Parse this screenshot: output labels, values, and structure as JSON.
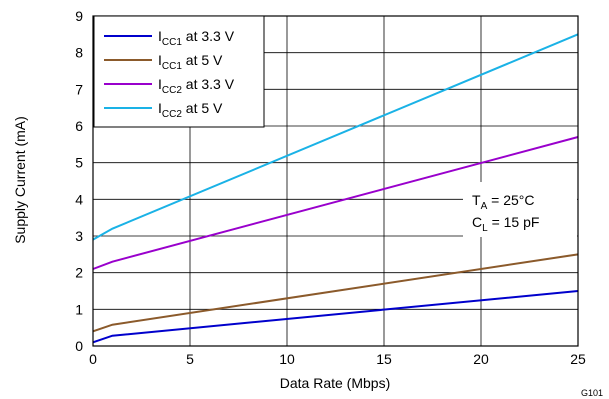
{
  "chart_data": {
    "type": "line",
    "xlabel": "Data Rate (Mbps)",
    "ylabel": "Supply Current (mA)",
    "xlim": [
      0,
      25
    ],
    "ylim": [
      0,
      9
    ],
    "x_ticks": [
      0,
      5,
      10,
      15,
      20,
      25
    ],
    "y_ticks": [
      0,
      1,
      2,
      3,
      4,
      5,
      6,
      7,
      8,
      9
    ],
    "grid": true,
    "legend_position": "top-left",
    "series": [
      {
        "name_main": "I",
        "name_sub": "CC1",
        "name_rest": " at 3.3 V",
        "color": "#0000cc",
        "x": [
          0,
          1,
          25
        ],
        "y": [
          0.1,
          0.28,
          1.5
        ]
      },
      {
        "name_main": "I",
        "name_sub": "CC1",
        "name_rest": " at 5 V",
        "color": "#8b5a2b",
        "x": [
          0,
          1,
          25
        ],
        "y": [
          0.4,
          0.58,
          2.5
        ]
      },
      {
        "name_main": "I",
        "name_sub": "CC2",
        "name_rest": " at 3.3 V",
        "color": "#9900cc",
        "x": [
          0,
          1,
          25
        ],
        "y": [
          2.1,
          2.3,
          5.7
        ]
      },
      {
        "name_main": "I",
        "name_sub": "CC2",
        "name_rest": " at 5 V",
        "color": "#1ab2e6",
        "x": [
          0,
          1,
          25
        ],
        "y": [
          2.9,
          3.2,
          8.5
        ]
      }
    ],
    "annotation": {
      "line1_main": "T",
      "line1_sub": "A",
      "line1_rest": " = 25°C",
      "line2_main": "C",
      "line2_sub": "L",
      "line2_rest": " = 15 pF"
    },
    "figure_id": "G101"
  }
}
